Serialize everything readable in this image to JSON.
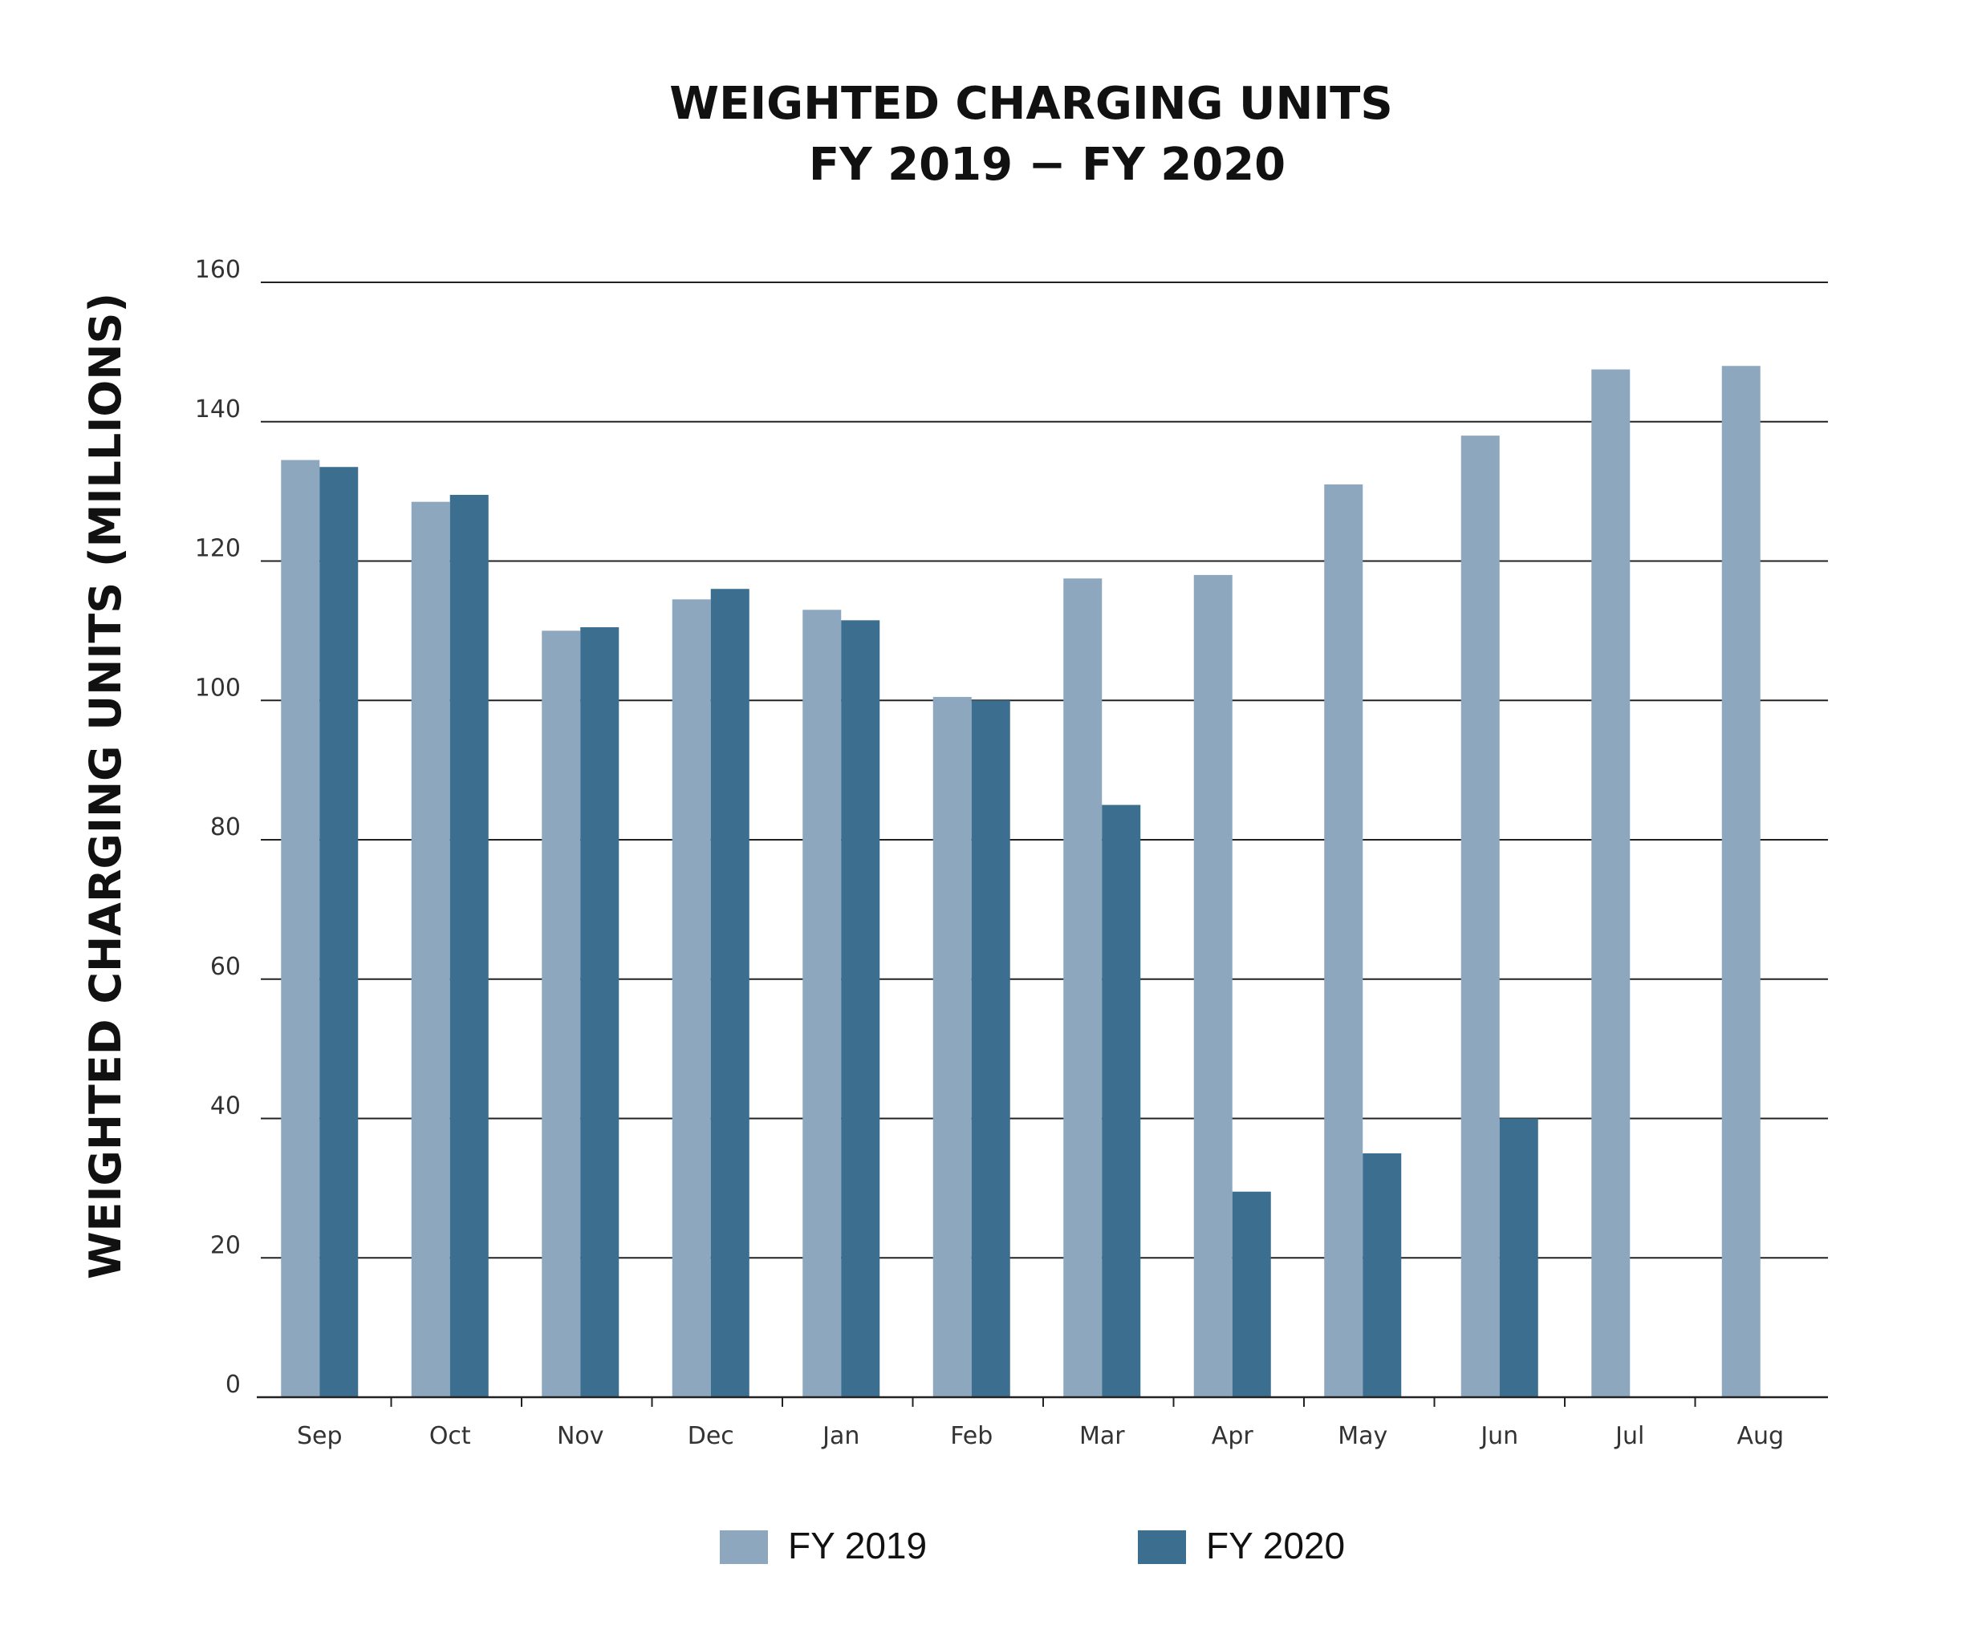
{
  "chart_data": {
    "type": "bar",
    "title": "WEIGHTED CHARGING UNITS",
    "subtitle": "FY 2019 − FY 2020",
    "xlabel": "",
    "ylabel": "WEIGHTED CHARGING UNITS (MILLIONS)",
    "ylim": [
      0,
      160
    ],
    "yticks": [
      0,
      20,
      40,
      60,
      80,
      100,
      120,
      140,
      160
    ],
    "categories": [
      "Sep",
      "Oct",
      "Nov",
      "Dec",
      "Jan",
      "Feb",
      "Mar",
      "Apr",
      "May",
      "Jun",
      "Jul",
      "Aug"
    ],
    "series": [
      {
        "name": "FY 2019",
        "color": "#8da7bf",
        "values": [
          134.5,
          128.5,
          110,
          114.5,
          113,
          100.5,
          117.5,
          118,
          131,
          138,
          147.5,
          148
        ]
      },
      {
        "name": "FY 2020",
        "color": "#3c6e8f",
        "values": [
          133.5,
          129.5,
          110.5,
          116,
          111.5,
          100,
          85,
          29.5,
          35,
          40,
          null,
          null
        ]
      }
    ],
    "grid": "horizontal",
    "legend": "bottom"
  }
}
